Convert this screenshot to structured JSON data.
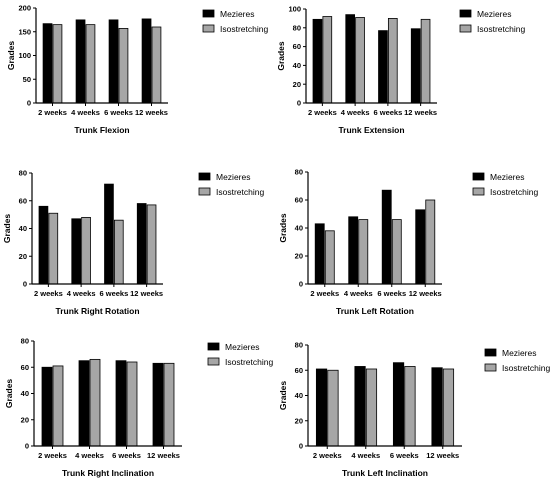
{
  "chart_data": [
    {
      "type": "bar",
      "title": "",
      "xlabel": "Trunk Flexion",
      "ylabel": "Grades",
      "categories": [
        "2 weeks",
        "4 weeks",
        "6 weeks",
        "12 weeks"
      ],
      "ylim": [
        0,
        200
      ],
      "yticks": [
        0,
        50,
        100,
        150,
        200
      ],
      "series": [
        {
          "name": "Mezieres",
          "values": [
            167,
            175,
            175,
            177
          ],
          "color": "#000000"
        },
        {
          "name": "Isostretching",
          "values": [
            165,
            165,
            157,
            160
          ],
          "color": "#a6a6a6"
        }
      ],
      "legend": "right",
      "grid": false
    },
    {
      "type": "bar",
      "title": "",
      "xlabel": "Trunk Extension",
      "ylabel": "Grades",
      "categories": [
        "2 weeks",
        "4 weeks",
        "6 weeks",
        "12 weeks"
      ],
      "ylim": [
        0,
        100
      ],
      "yticks": [
        0,
        20,
        40,
        60,
        80,
        100
      ],
      "series": [
        {
          "name": "Mezieres",
          "values": [
            89,
            94,
            77,
            79
          ],
          "color": "#000000"
        },
        {
          "name": "Isostretching",
          "values": [
            92,
            91,
            90,
            89
          ],
          "color": "#a6a6a6"
        }
      ],
      "legend": "right",
      "grid": false
    },
    {
      "type": "bar",
      "title": "",
      "xlabel": "Trunk Right Rotation",
      "ylabel": "Grades",
      "categories": [
        "2 weeks",
        "4 weeks",
        "6 weeks",
        "12 weeks"
      ],
      "ylim": [
        0,
        80
      ],
      "yticks": [
        0,
        20,
        40,
        60,
        80
      ],
      "series": [
        {
          "name": "Mezieres",
          "values": [
            56,
            47,
            72,
            58
          ],
          "color": "#000000"
        },
        {
          "name": "Isostretching",
          "values": [
            51,
            48,
            46,
            57
          ],
          "color": "#a6a6a6"
        }
      ],
      "legend": "right",
      "grid": false
    },
    {
      "type": "bar",
      "title": "",
      "xlabel": "Trunk Left Rotation",
      "ylabel": "Grades",
      "categories": [
        "2 weeks",
        "4 weeks",
        "6 weeks",
        "12 weeks"
      ],
      "ylim": [
        0,
        80
      ],
      "yticks": [
        0,
        20,
        40,
        60,
        80
      ],
      "series": [
        {
          "name": "Mezieres",
          "values": [
            43,
            48,
            67,
            53
          ],
          "color": "#000000"
        },
        {
          "name": "Isostretching",
          "values": [
            38,
            46,
            46,
            60
          ],
          "color": "#a6a6a6"
        }
      ],
      "legend": "right",
      "grid": false
    },
    {
      "type": "bar",
      "title": "",
      "xlabel": "Trunk Right Inclination",
      "ylabel": "Grades",
      "categories": [
        "2 weeks",
        "4 weeks",
        "6 weeks",
        "12 weeks"
      ],
      "ylim": [
        0,
        80
      ],
      "yticks": [
        0,
        20,
        40,
        60,
        80
      ],
      "series": [
        {
          "name": "Mezieres",
          "values": [
            60,
            65,
            65,
            63
          ],
          "color": "#000000"
        },
        {
          "name": "Isostretching",
          "values": [
            61,
            66,
            64,
            63
          ],
          "color": "#a6a6a6"
        }
      ],
      "legend": "right",
      "grid": false
    },
    {
      "type": "bar",
      "title": "",
      "xlabel": "Trunk Left Inclination",
      "ylabel": "Grades",
      "categories": [
        "2 weeks",
        "4 weeks",
        "6 weeks",
        "12 weeks"
      ],
      "ylim": [
        0,
        80
      ],
      "yticks": [
        0,
        20,
        40,
        60,
        80
      ],
      "series": [
        {
          "name": "Mezieres",
          "values": [
            61,
            63,
            66,
            62
          ],
          "color": "#000000"
        },
        {
          "name": "Isostretching",
          "values": [
            60,
            61,
            63,
            61
          ],
          "color": "#a6a6a6"
        }
      ],
      "legend": "right",
      "grid": false
    }
  ]
}
